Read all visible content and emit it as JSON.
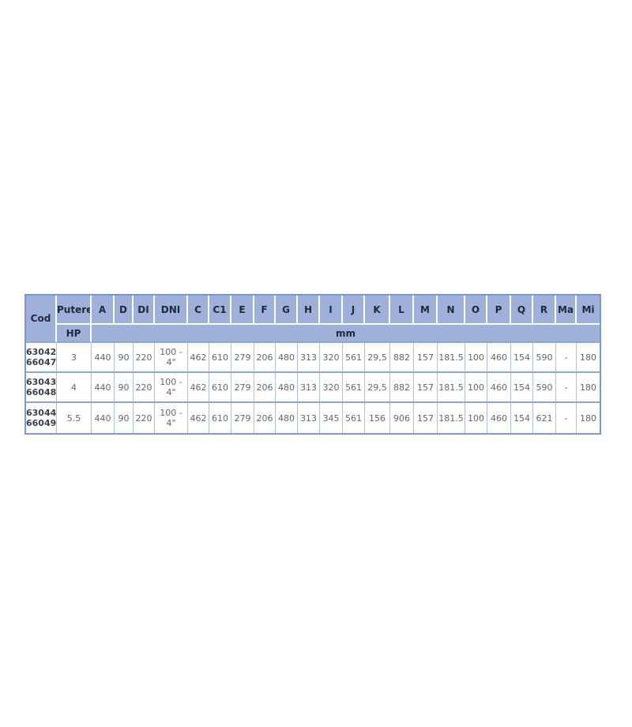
{
  "table": {
    "title": "dimensions-table",
    "header": {
      "cod_label": "Cod",
      "putere_label": "Putere",
      "hp_label": "HP",
      "unit_label": "mm",
      "dim_columns": [
        "A",
        "D",
        "DI",
        "DNI",
        "C",
        "C1",
        "E",
        "F",
        "G",
        "H",
        "I",
        "J",
        "K",
        "L",
        "M",
        "N",
        "O",
        "P",
        "Q",
        "R",
        "Ma",
        "Mi"
      ]
    },
    "rows": [
      {
        "cod": [
          "63042",
          "66047"
        ],
        "putere": "3",
        "values": [
          "440",
          "90",
          "220",
          "100 - 4\"",
          "462",
          "610",
          "279",
          "206",
          "480",
          "313",
          "320",
          "561",
          "29,5",
          "882",
          "157",
          "181.5",
          "100",
          "460",
          "154",
          "590",
          "-",
          "180"
        ]
      },
      {
        "cod": [
          "63043",
          "66048"
        ],
        "putere": "4",
        "values": [
          "440",
          "90",
          "220",
          "100 - 4\"",
          "462",
          "610",
          "279",
          "206",
          "480",
          "313",
          "320",
          "561",
          "29,5",
          "882",
          "157",
          "181.5",
          "100",
          "460",
          "154",
          "590",
          "-",
          "180"
        ]
      },
      {
        "cod": [
          "63044",
          "66049"
        ],
        "putere": "5.5",
        "values": [
          "440",
          "90",
          "220",
          "100 - 4\"",
          "462",
          "610",
          "279",
          "206",
          "480",
          "313",
          "345",
          "561",
          "156",
          "906",
          "157",
          "181.5",
          "100",
          "460",
          "154",
          "621",
          "-",
          "180"
        ]
      }
    ],
    "colors": {
      "header_bg": "#9fb0da",
      "header_text": "#232839",
      "outer_border": "#7f97c7",
      "row_divider": "#8fa5d1",
      "cell_divider": "#aebfe0",
      "data_text": "#606572",
      "cod_text": "#3b4050"
    }
  }
}
